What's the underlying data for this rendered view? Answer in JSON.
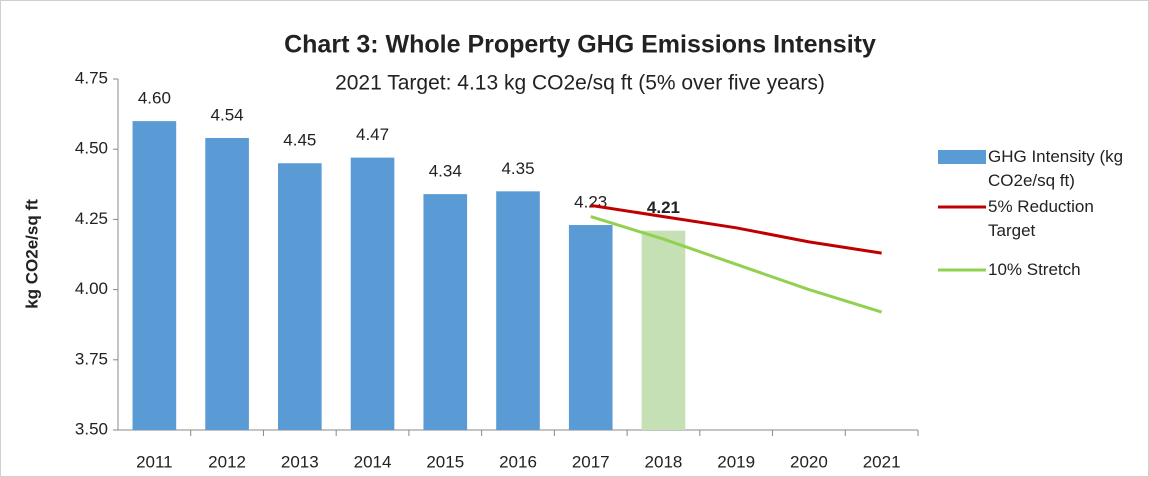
{
  "chart_data": {
    "type": "bar",
    "title": "Chart 3:  Whole Property GHG Emissions Intensity",
    "subtitle": "2021 Target: 4.13 kg CO2e/sq ft (5% over five years)",
    "y_label": "kg CO2e/sq ft",
    "categories": [
      "2011",
      "2012",
      "2013",
      "2014",
      "2015",
      "2016",
      "2017",
      "2018",
      "2019",
      "2020",
      "2021"
    ],
    "series": [
      {
        "name": "GHG Intensity (kg CO2e/sq ft)",
        "type": "bar",
        "color": "#5b9bd5",
        "colors": [
          "#5b9bd5",
          "#5b9bd5",
          "#5b9bd5",
          "#5b9bd5",
          "#5b9bd5",
          "#5b9bd5",
          "#5b9bd5",
          "#c5e0b4",
          null,
          null,
          null
        ],
        "values": [
          4.6,
          4.54,
          4.45,
          4.47,
          4.34,
          4.35,
          4.23,
          4.21,
          null,
          null,
          null
        ],
        "value_labels": [
          "4.60",
          "4.54",
          "4.45",
          "4.47",
          "4.34",
          "4.35",
          "4.23",
          "4.21",
          null,
          null,
          null
        ]
      },
      {
        "name": "5%  Reduction Target",
        "type": "line",
        "color": "#c00000",
        "values": [
          null,
          null,
          null,
          null,
          null,
          null,
          4.3,
          4.26,
          4.22,
          4.17,
          4.13
        ]
      },
      {
        "name": "10% Stretch",
        "type": "line",
        "color": "#92d050",
        "values": [
          null,
          null,
          null,
          null,
          null,
          null,
          4.26,
          4.18,
          4.09,
          4.0,
          3.92
        ]
      }
    ],
    "ylim": [
      3.5,
      4.75
    ],
    "yticks": [
      {
        "value": 3.5,
        "label": "3.50"
      },
      3.75,
      {
        "value": 4.0,
        "label": "4.00"
      },
      4.25,
      {
        "value": 4.5,
        "label": "4.50"
      },
      4.75
    ],
    "grid": false,
    "legend": "right"
  }
}
